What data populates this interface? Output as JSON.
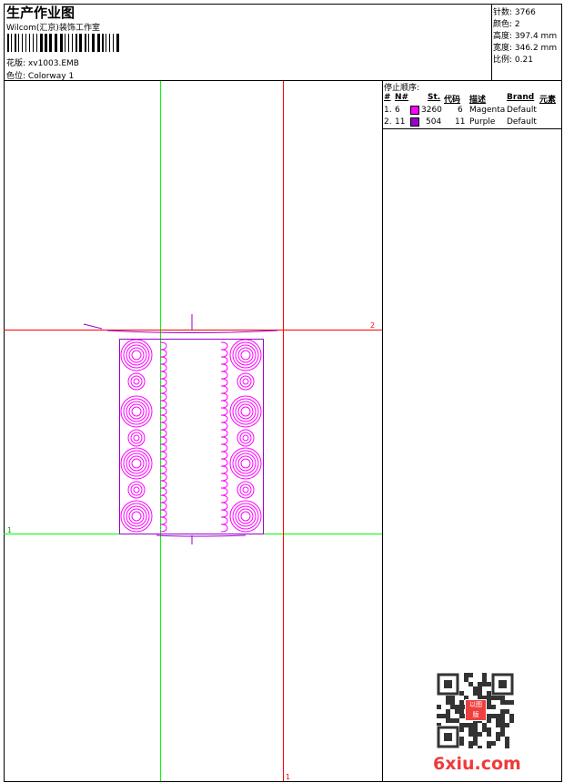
{
  "header": {
    "title": "生产作业图",
    "company": "Wilcom(汇京)装饰工作室",
    "design_label": "花版:",
    "design_value": "xv1003.EMB",
    "colorway_label": "色位:",
    "colorway_value": "Colorway 1"
  },
  "info": [
    {
      "label": "针数:",
      "value": "3766"
    },
    {
      "label": "颜色:",
      "value": "2"
    },
    {
      "label": "高度:",
      "value": "397.4 mm"
    },
    {
      "label": "宽度:",
      "value": "346.2 mm"
    },
    {
      "label": "比例:",
      "value": "0.21"
    }
  ],
  "stop_sequence": {
    "title": "停止顺序:",
    "columns": [
      "#",
      "N#",
      "St.",
      "代码",
      "描述",
      "Brand",
      "元素"
    ],
    "rows": [
      {
        "idx": "1.",
        "n": "6",
        "color": "#ff00ff",
        "st": "3260",
        "code": "6",
        "desc": "Magenta",
        "brand": "Default"
      },
      {
        "idx": "2.",
        "n": "11",
        "color": "#9900cc",
        "st": "504",
        "code": "11",
        "desc": "Purple",
        "brand": "Default"
      }
    ]
  },
  "canvas": {
    "marker_top": "2",
    "marker_left": "1",
    "marker_bottom": "1",
    "hoop_color": "#ff0000",
    "axis_color": "#00ff00",
    "stitch_colors": [
      "#ff00ff",
      "#9900cc"
    ]
  },
  "watermark": {
    "text": "6xiu.com",
    "stamp": "以图版"
  }
}
